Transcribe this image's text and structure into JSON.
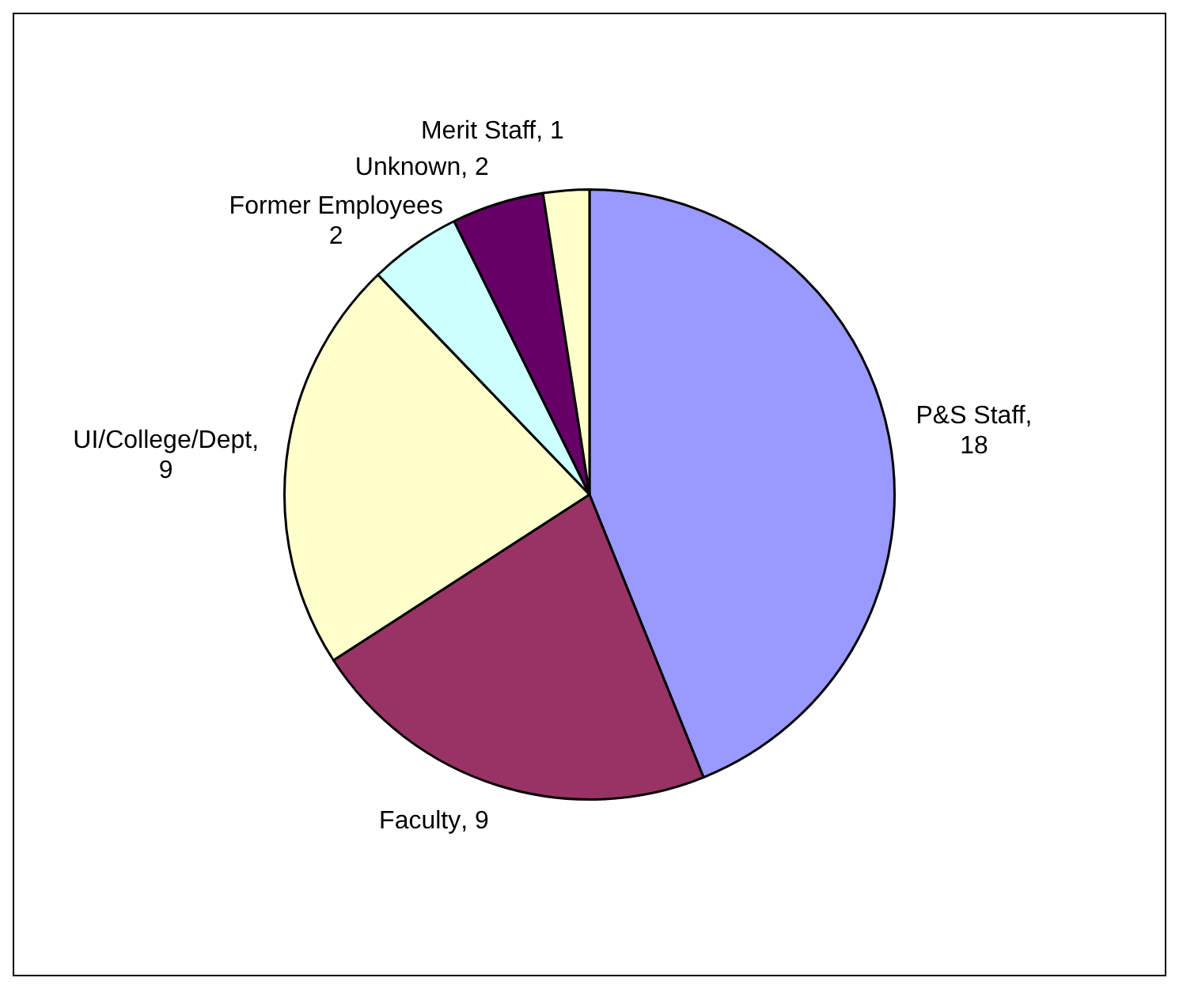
{
  "chart_data": {
    "type": "pie",
    "categories": [
      "P&S Staff",
      "Faculty",
      "UI/College/Dept",
      "Former Employees",
      "Unknown",
      "Merit Staff"
    ],
    "values": [
      18,
      9,
      9,
      2,
      2,
      1
    ],
    "colors": [
      "#9999ff",
      "#993366",
      "#ffffcc",
      "#ccffff",
      "#660066",
      "#ffffcc"
    ],
    "value_labels": [
      ", 18",
      ", 9",
      ", 9",
      "2",
      ", 2",
      ", 1"
    ],
    "legend": false
  }
}
